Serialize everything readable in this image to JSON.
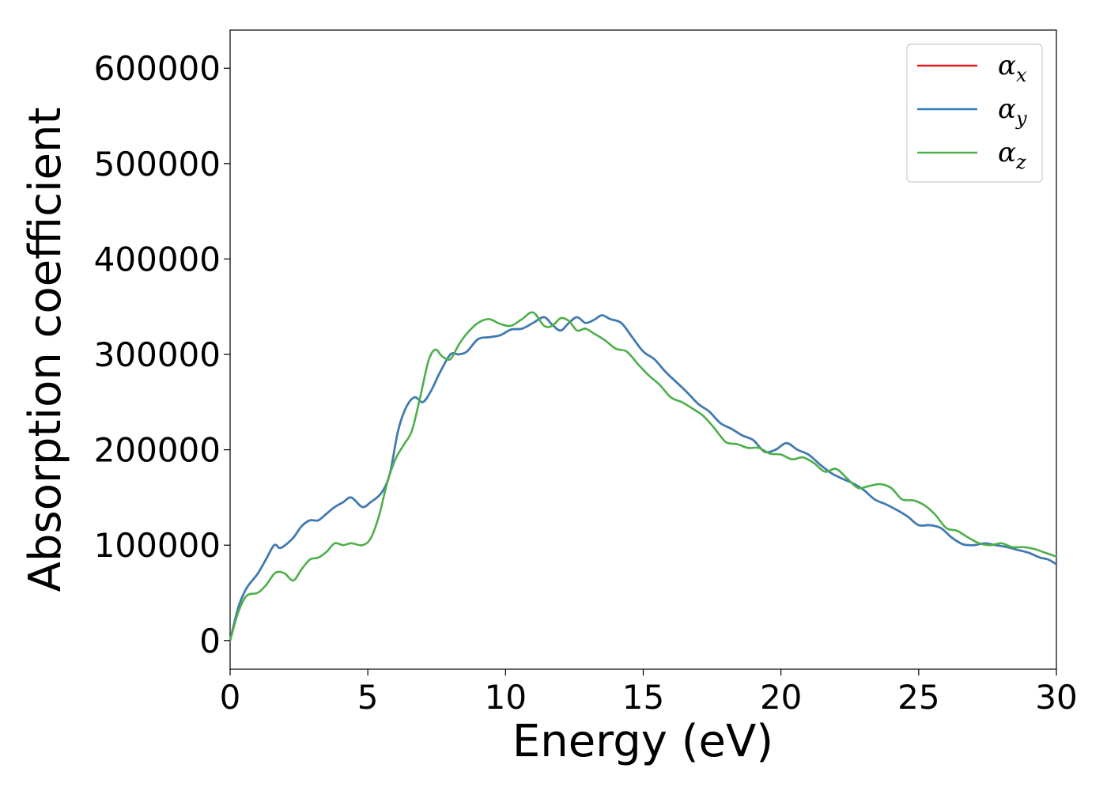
{
  "chart_data": {
    "type": "line",
    "xlabel": "Energy (eV)",
    "ylabel": "Absorption coefficient",
    "xlim": [
      0,
      30
    ],
    "ylim": [
      -30000,
      640000
    ],
    "xticks": [
      0,
      5,
      10,
      15,
      20,
      25,
      30
    ],
    "yticks": [
      0,
      100000,
      200000,
      300000,
      400000,
      500000,
      600000
    ],
    "grid": false,
    "legend_position": "top-right",
    "series": [
      {
        "name": "α_x",
        "legend_base": "α",
        "legend_sub": "x",
        "color": "#e41a1c",
        "x": [
          0,
          0.3,
          0.6,
          1.0,
          1.3,
          1.6,
          1.8,
          2.0,
          2.3,
          2.6,
          2.9,
          3.2,
          3.5,
          3.8,
          4.1,
          4.4,
          4.8,
          5.1,
          5.5,
          5.8,
          6.1,
          6.4,
          6.7,
          7.0,
          7.3,
          7.6,
          8.0,
          8.3,
          8.6,
          9.0,
          9.4,
          9.8,
          10.2,
          10.6,
          11.0,
          11.4,
          11.7,
          12.0,
          12.3,
          12.6,
          12.9,
          13.2,
          13.5,
          13.8,
          14.2,
          14.6,
          15.0,
          15.4,
          15.8,
          16.2,
          16.6,
          17.0,
          17.4,
          17.8,
          18.2,
          18.6,
          19.0,
          19.4,
          19.8,
          20.2,
          20.6,
          21.0,
          21.4,
          21.8,
          22.2,
          22.6,
          23.0,
          23.4,
          23.8,
          24.2,
          24.6,
          25.0,
          25.4,
          25.8,
          26.2,
          26.6,
          27.0,
          27.4,
          27.8,
          28.2,
          28.6,
          29.0,
          29.4,
          29.7,
          30.0
        ],
        "y": [
          0,
          35000,
          55000,
          70000,
          85000,
          100000,
          97000,
          100000,
          108000,
          120000,
          126000,
          126000,
          133000,
          140000,
          145000,
          150000,
          140000,
          145000,
          155000,
          175000,
          220000,
          245000,
          255000,
          250000,
          262000,
          280000,
          300000,
          300000,
          303000,
          316000,
          318000,
          320000,
          326000,
          327000,
          333000,
          339000,
          331000,
          325000,
          333000,
          339000,
          333000,
          336000,
          341000,
          337000,
          333000,
          318000,
          303000,
          295000,
          282000,
          271000,
          260000,
          248000,
          240000,
          228000,
          222000,
          215000,
          210000,
          198000,
          200000,
          207000,
          200000,
          195000,
          185000,
          176000,
          170000,
          165000,
          158000,
          148000,
          143000,
          137000,
          130000,
          121000,
          121000,
          118000,
          108000,
          101000,
          100000,
          102000,
          100000,
          98000,
          95000,
          92000,
          87000,
          85000,
          80000
        ]
      },
      {
        "name": "α_y",
        "legend_base": "α",
        "legend_sub": "y",
        "color": "#377eb8",
        "x": [
          0,
          0.3,
          0.6,
          1.0,
          1.3,
          1.6,
          1.8,
          2.0,
          2.3,
          2.6,
          2.9,
          3.2,
          3.5,
          3.8,
          4.1,
          4.4,
          4.8,
          5.1,
          5.5,
          5.8,
          6.1,
          6.4,
          6.7,
          7.0,
          7.3,
          7.6,
          8.0,
          8.3,
          8.6,
          9.0,
          9.4,
          9.8,
          10.2,
          10.6,
          11.0,
          11.4,
          11.7,
          12.0,
          12.3,
          12.6,
          12.9,
          13.2,
          13.5,
          13.8,
          14.2,
          14.6,
          15.0,
          15.4,
          15.8,
          16.2,
          16.6,
          17.0,
          17.4,
          17.8,
          18.2,
          18.6,
          19.0,
          19.4,
          19.8,
          20.2,
          20.6,
          21.0,
          21.4,
          21.8,
          22.2,
          22.6,
          23.0,
          23.4,
          23.8,
          24.2,
          24.6,
          25.0,
          25.4,
          25.8,
          26.2,
          26.6,
          27.0,
          27.4,
          27.8,
          28.2,
          28.6,
          29.0,
          29.4,
          29.7,
          30.0
        ],
        "y": [
          0,
          35000,
          55000,
          70000,
          85000,
          100000,
          97000,
          100000,
          108000,
          120000,
          126000,
          126000,
          133000,
          140000,
          145000,
          150000,
          140000,
          145000,
          155000,
          175000,
          220000,
          245000,
          255000,
          250000,
          262000,
          280000,
          300000,
          300000,
          303000,
          316000,
          318000,
          320000,
          326000,
          327000,
          333000,
          339000,
          331000,
          325000,
          333000,
          339000,
          333000,
          336000,
          341000,
          337000,
          333000,
          318000,
          303000,
          295000,
          282000,
          271000,
          260000,
          248000,
          240000,
          228000,
          222000,
          215000,
          210000,
          198000,
          200000,
          207000,
          200000,
          195000,
          185000,
          176000,
          170000,
          165000,
          158000,
          148000,
          143000,
          137000,
          130000,
          121000,
          121000,
          118000,
          108000,
          101000,
          100000,
          102000,
          100000,
          98000,
          95000,
          92000,
          87000,
          85000,
          80000
        ]
      },
      {
        "name": "α_z",
        "legend_base": "α",
        "legend_sub": "z",
        "color": "#4daf4a",
        "x": [
          0,
          0.3,
          0.6,
          1.0,
          1.3,
          1.6,
          1.8,
          2.0,
          2.3,
          2.6,
          2.9,
          3.2,
          3.5,
          3.8,
          4.1,
          4.4,
          4.8,
          5.1,
          5.4,
          5.7,
          6.0,
          6.3,
          6.6,
          6.9,
          7.2,
          7.45,
          7.7,
          8.0,
          8.3,
          8.6,
          9.0,
          9.4,
          9.8,
          10.2,
          10.6,
          11.0,
          11.4,
          11.7,
          12.0,
          12.3,
          12.6,
          12.9,
          13.2,
          13.6,
          14.0,
          14.4,
          14.8,
          15.2,
          15.6,
          16.0,
          16.4,
          16.8,
          17.2,
          17.6,
          18.0,
          18.4,
          18.8,
          19.2,
          19.6,
          20.0,
          20.4,
          20.8,
          21.2,
          21.6,
          22.0,
          22.4,
          22.8,
          23.2,
          23.6,
          24.0,
          24.4,
          24.8,
          25.2,
          25.6,
          26.0,
          26.4,
          26.8,
          27.2,
          27.6,
          28.0,
          28.4,
          28.8,
          29.2,
          29.6,
          30.0
        ],
        "y": [
          0,
          30000,
          47000,
          50000,
          58000,
          70000,
          72000,
          70000,
          63000,
          75000,
          85000,
          87000,
          93000,
          102000,
          100000,
          102000,
          100000,
          107000,
          130000,
          165000,
          190000,
          205000,
          220000,
          255000,
          293000,
          305000,
          298000,
          295000,
          310000,
          322000,
          333000,
          337000,
          332000,
          330000,
          337000,
          344000,
          330000,
          330000,
          338000,
          335000,
          325000,
          327000,
          322000,
          315000,
          306000,
          303000,
          290000,
          278000,
          268000,
          255000,
          250000,
          243000,
          235000,
          222000,
          208000,
          206000,
          202000,
          202000,
          196000,
          195000,
          190000,
          192000,
          186000,
          177000,
          180000,
          170000,
          160000,
          162000,
          164000,
          160000,
          148000,
          147000,
          142000,
          132000,
          118000,
          115000,
          108000,
          102000,
          100000,
          102000,
          98000,
          98000,
          96000,
          92000,
          88000
        ]
      }
    ]
  }
}
